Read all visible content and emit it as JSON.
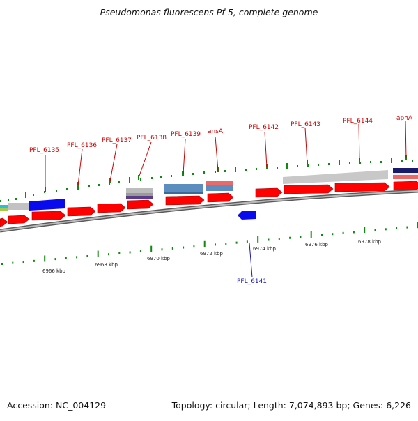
{
  "title": "Pseudomonas fluorescens Pf-5, complete genome",
  "footer": {
    "accession": "Accession: NC_004129",
    "summary": "Topology: circular; Length: 7,074,893 bp; Genes: 6,226"
  },
  "colors": {
    "cds": "#ff0000",
    "reverse_cds": "#0a0aee",
    "backbone": "#8a8a8a",
    "tick": "#118811",
    "gene_label": "#cc0000",
    "reverse_label": "#1a1aaa",
    "scale_label": "#222222"
  },
  "scale_labels": [
    "6966 kbp",
    "6968 kbp",
    "6970 kbp",
    "6972 kbp",
    "6974 kbp",
    "6976 kbp",
    "6978 kbp"
  ],
  "gene_labels": [
    "PFL_6135",
    "PFL_6136",
    "PFL_6137",
    "PFL_6138",
    "PFL_6139",
    "ansA",
    "PFL_6142",
    "PFL_6143",
    "PFL_6144",
    "aphA"
  ],
  "reverse_labels": [
    "PFL_6141"
  ]
}
